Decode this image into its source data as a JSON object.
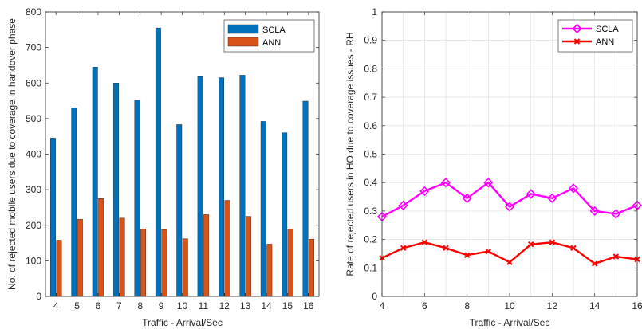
{
  "chart_data": [
    {
      "type": "bar",
      "categories": [
        "4",
        "5",
        "6",
        "7",
        "8",
        "9",
        "10",
        "11",
        "12",
        "13",
        "14",
        "15",
        "16"
      ],
      "series": [
        {
          "name": "SCLA",
          "color": "#0072BD",
          "values": [
            445,
            530,
            645,
            600,
            552,
            755,
            483,
            618,
            615,
            622,
            492,
            460,
            549
          ]
        },
        {
          "name": "ANN",
          "color": "#D95319",
          "values": [
            158,
            217,
            275,
            220,
            190,
            188,
            162,
            230,
            270,
            225,
            147,
            190,
            161
          ]
        }
      ],
      "xlabel": "Traffic - Arrival/Sec",
      "ylabel": "No. of rejected mobile users due to coverage in handover phase",
      "ylim": [
        0,
        800
      ],
      "yticks": [
        "0",
        "100",
        "200",
        "300",
        "400",
        "500",
        "600",
        "700",
        "800"
      ],
      "grid": false,
      "legend": "top-right"
    },
    {
      "type": "line",
      "x": [
        4,
        5,
        6,
        7,
        8,
        9,
        10,
        11,
        12,
        13,
        14,
        15,
        16
      ],
      "series": [
        {
          "name": "SCLA",
          "color": "#FF00FF",
          "marker": "diamond",
          "values": [
            0.28,
            0.32,
            0.37,
            0.4,
            0.345,
            0.4,
            0.315,
            0.36,
            0.345,
            0.38,
            0.3,
            0.29,
            0.32
          ]
        },
        {
          "name": "ANN",
          "color": "#FF0000",
          "marker": "x",
          "values": [
            0.135,
            0.17,
            0.19,
            0.17,
            0.145,
            0.158,
            0.12,
            0.183,
            0.19,
            0.17,
            0.115,
            0.14,
            0.13
          ]
        }
      ],
      "xlabel": "Traffic - Arrival/Sec",
      "ylabel": "Rate of rejected users in HO due to coverage issues - RH",
      "xlim": [
        4,
        16
      ],
      "ylim": [
        0,
        1
      ],
      "xticks": [
        "4",
        "6",
        "8",
        "10",
        "12",
        "14",
        "16"
      ],
      "yticks": [
        "0",
        "0.1",
        "0.2",
        "0.3",
        "0.4",
        "0.5",
        "0.6",
        "0.7",
        "0.8",
        "0.9",
        "1"
      ],
      "grid": true,
      "legend": "top-right"
    }
  ]
}
